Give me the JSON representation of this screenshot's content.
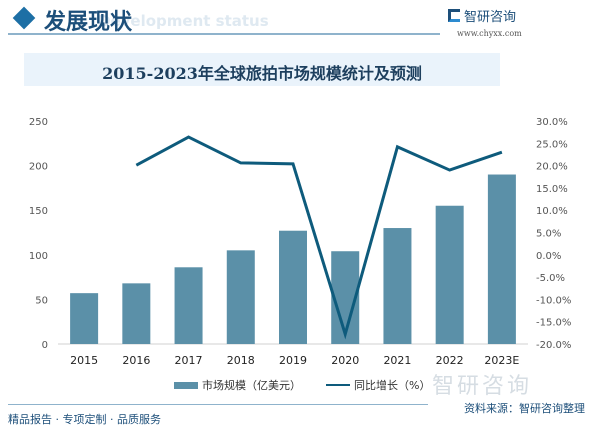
{
  "header": {
    "title": "发展现状",
    "subtitle_en": "Development status",
    "logo": "智研咨询",
    "url": "www.chyxx.com"
  },
  "footer": {
    "tagline": "精品报告 · 专项定制 · 品质服务",
    "source": "资料来源：智研咨询整理",
    "watermark": "智研咨询"
  },
  "chart_data": {
    "type": "bar+line",
    "title": "2015-2023年全球旅拍市场规模统计及预测",
    "categories": [
      "2015",
      "2016",
      "2017",
      "2018",
      "2019",
      "2020",
      "2021",
      "2022",
      "2023E"
    ],
    "series": [
      {
        "name": "市场规模（亿美元）",
        "type": "bar",
        "axis": "left",
        "values": [
          57,
          68,
          86,
          105,
          127,
          104,
          130,
          155,
          190
        ]
      },
      {
        "name": "同比增长（%）",
        "type": "line",
        "axis": "right",
        "values": [
          null,
          20.1,
          26.4,
          20.6,
          20.4,
          -17.8,
          24.2,
          19.0,
          23.0
        ]
      }
    ],
    "left_axis": {
      "ylim": [
        0,
        250
      ],
      "ticks": [
        "0",
        "50",
        "100",
        "150",
        "200",
        "250"
      ]
    },
    "right_axis": {
      "ylim": [
        -20,
        30
      ],
      "ticks": [
        "-20.0%",
        "-15.0%",
        "-10.0%",
        "-5.0%",
        "0.0%",
        "5.0%",
        "10.0%",
        "15.0%",
        "20.0%",
        "25.0%",
        "30.0%"
      ]
    },
    "colors": {
      "bar": "#5b90a8",
      "line": "#0e5b7c"
    },
    "legend": "bottom"
  }
}
